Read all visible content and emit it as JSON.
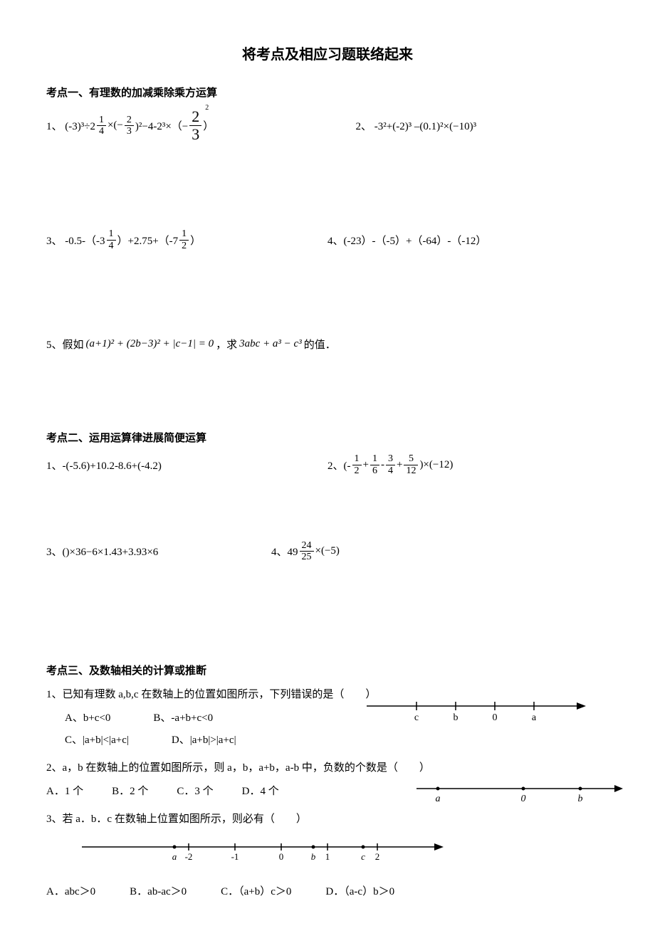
{
  "title": "将考点及相应习题联络起来",
  "sec1": {
    "head": "考点一、有理数的加减乘除乘方运算",
    "q1_pre": "1、 (-3)³÷2",
    "q1_f1n": "1",
    "q1_f1d": "4",
    "q1_m1": "×(−",
    "q1_f2n": "2",
    "q1_f2d": "3",
    "q1_m2": ")²−4-2³×（−",
    "q1_f3n": "2",
    "q1_f3d": "3",
    "q1_m3": "）",
    "q1_exp": "2",
    "q2": "2、 -3²+(-2)³ –(0.1)²×(−10)³",
    "q3_pre": "3、 -0.5-（-3",
    "q3_f1n": "1",
    "q3_f1d": "4",
    "q3_m1": "）+2.75+（-7",
    "q3_f2n": "1",
    "q3_f2d": "2",
    "q3_m2": "）",
    "q4": "4、(-23）-（-5）+（-64）-（-12）",
    "q5_pre": "5、假如",
    "q5_expr": "(a+1)² + (2b−3)² + |c−1| = 0",
    "q5_mid": "，求",
    "q5_expr2": "3abc + a³ − c³",
    "q5_post": "的值．"
  },
  "sec2": {
    "head": "考点二、运用运算律进展简便运算",
    "q1": "1、-(-5.6)+10.2-8.6+(-4.2)",
    "q2_pre": "2、(-",
    "q2_f1n": "1",
    "q2_f1d": "2",
    "q2_p1": "+",
    "q2_f2n": "1",
    "q2_f2d": "6",
    "q2_p2": "-",
    "q2_f3n": "3",
    "q2_f3d": "4",
    "q2_p3": "+",
    "q2_f4n": "5",
    "q2_f4d": "12",
    "q2_post": ")×(−12)",
    "q3": "3、()×36−6×1.43+3.93×6",
    "q4_pre": "4、49",
    "q4_fn": "24",
    "q4_fd": "25",
    "q4_post": "×(−5)"
  },
  "sec3": {
    "head": "考点三、及数轴相关的计算或推断",
    "q1": "1、已知有理数 a,b,c 在数轴上的位置如图所示，下列错误的是（　　）",
    "q1a": "A、b+c<0",
    "q1b": "B、-a+b+c<0",
    "q1c": "C、|a+b|<|a+c|",
    "q1d": "D、|a+b|>|a+c|",
    "q2": "2、a，b 在数轴上的位置如图所示，则 a，b，a+b，a-b 中，负数的个数是（　　）",
    "q2a": "A．1 个",
    "q2b": "B．2 个",
    "q2c": "C．3 个",
    "q2d": "D．4 个",
    "q3": "3、若 a．b．c 在数轴上位置如图所示，则必有（　　）",
    "q3a": "A．abc＞0",
    "q3b": "B．ab-ac＞0",
    "q3c": "C．（a+b）c＞0",
    "q3d": "D．（a-c）b＞0",
    "nl1": {
      "labels": [
        "c",
        "b",
        "0",
        "a"
      ]
    },
    "nl2": {
      "labels": [
        "a",
        "0",
        "b"
      ]
    },
    "nl3": {
      "labels": [
        "a",
        "-2",
        "-1",
        "0",
        "b",
        "1",
        "c",
        "2"
      ]
    }
  }
}
